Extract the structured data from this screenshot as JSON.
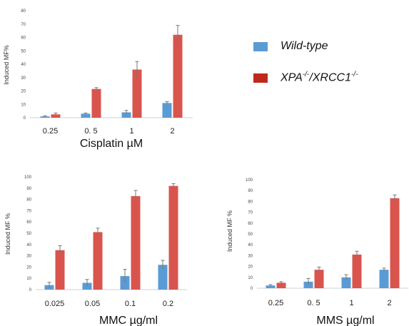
{
  "legend": {
    "wildtype_label": "Wild-type",
    "xpa_label_main": "XPA",
    "xpa_label_sup1": "-/-",
    "xpa_label_mid": "/XRCC1",
    "xpa_label_sup2": "-/-",
    "wildtype_color": "#5b9bd5",
    "mutant_color": "#c0281c"
  },
  "colors": {
    "wildtype": "#5b9bd5",
    "mutant": "#d9544d",
    "error": "#777777"
  },
  "chart_data": [
    {
      "type": "bar",
      "xlabel": "Cisplatin µM",
      "ylabel": "Induced MF%",
      "ylim": [
        0,
        80
      ],
      "yticks": [
        0,
        10,
        20,
        30,
        40,
        50,
        60,
        70,
        80
      ],
      "categories": [
        "0.25",
        "0. 5",
        "1",
        "2"
      ],
      "series": [
        {
          "name": "Wild-type",
          "values": [
            1,
            3,
            4,
            11
          ],
          "errors": [
            0.5,
            0.5,
            1.5,
            1
          ]
        },
        {
          "name": "XPA-/-/XRCC1-/-",
          "values": [
            2.5,
            21.5,
            36,
            62
          ],
          "errors": [
            1,
            1,
            6,
            7
          ]
        }
      ]
    },
    {
      "type": "bar",
      "xlabel": "MMC µg/ml",
      "ylabel": "Induced MF %",
      "ylim": [
        0,
        100
      ],
      "yticks": [
        0,
        10,
        20,
        30,
        40,
        50,
        60,
        70,
        80,
        90,
        100
      ],
      "categories": [
        "0.025",
        "0.05",
        "0.1",
        "0.2"
      ],
      "series": [
        {
          "name": "Wild-type",
          "values": [
            4,
            6,
            12,
            22
          ],
          "errors": [
            2.5,
            3,
            6,
            4
          ]
        },
        {
          "name": "XPA-/-/XRCC1-/-",
          "values": [
            35,
            51,
            83,
            92
          ],
          "errors": [
            4,
            3.5,
            5,
            2
          ]
        }
      ]
    },
    {
      "type": "bar",
      "xlabel": "MMS µg/ml",
      "ylabel": "Induced MF %",
      "ylim": [
        0,
        100
      ],
      "yticks": [
        0,
        10,
        20,
        30,
        40,
        50,
        60,
        70,
        80,
        90,
        100
      ],
      "categories": [
        "0.25",
        "0. 5",
        "1",
        "2"
      ],
      "series": [
        {
          "name": "Wild-type",
          "values": [
            2.5,
            6,
            10,
            17
          ],
          "errors": [
            0.8,
            3,
            2.5,
            1.5
          ]
        },
        {
          "name": "XPA-/-/XRCC1-/-",
          "values": [
            5,
            17,
            31,
            83
          ],
          "errors": [
            1,
            2.5,
            3,
            3
          ]
        }
      ]
    }
  ]
}
